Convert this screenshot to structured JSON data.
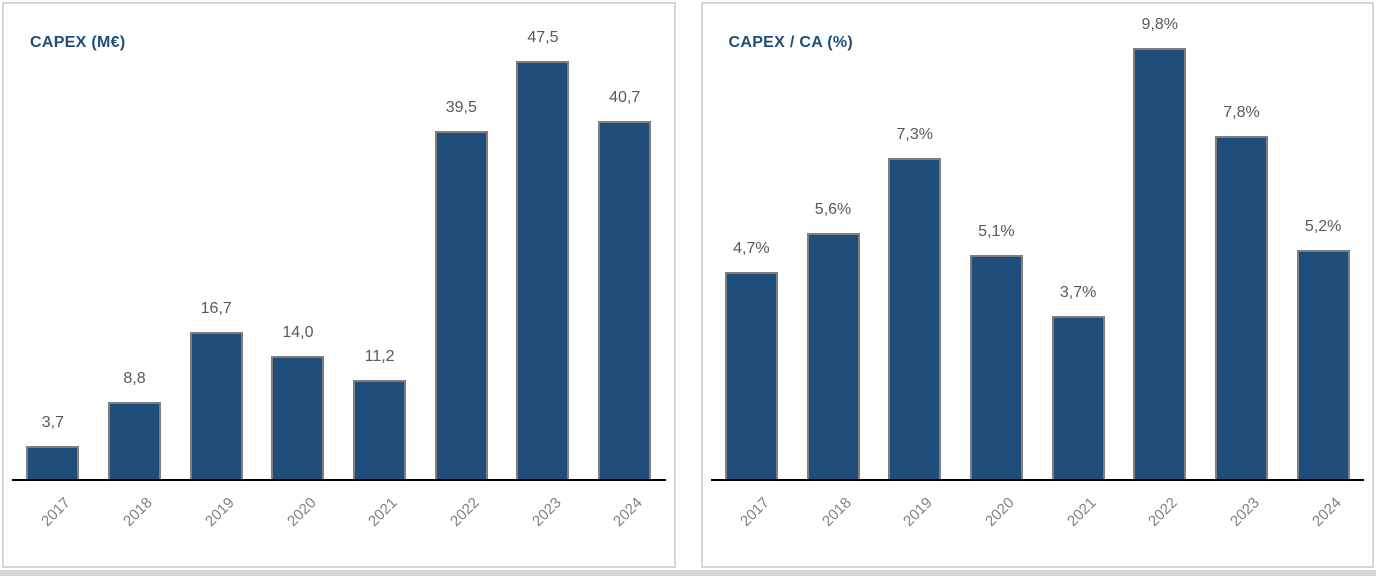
{
  "colors": {
    "bar_fill": "#1f4e7a",
    "bar_border": "#7f7f7f",
    "title": "#1f4e79",
    "data_label": "#595959",
    "axis_label": "#808080",
    "axis_line": "#000000",
    "panel_border": "#d6d6d6",
    "bottom_strip": "#d6d6d6",
    "background": "#ffffff"
  },
  "chart_data": [
    {
      "type": "bar",
      "title": "CAPEX (M€)",
      "categories": [
        "2017",
        "2018",
        "2019",
        "2020",
        "2021",
        "2022",
        "2023",
        "2024"
      ],
      "values": [
        3.7,
        8.8,
        16.7,
        14.0,
        11.2,
        39.5,
        47.5,
        40.7
      ],
      "value_labels": [
        "3,7",
        "8,8",
        "16,7",
        "14,0",
        "11,2",
        "39,5",
        "47,5",
        "40,7"
      ],
      "xlabel": "",
      "ylabel": "",
      "ylim": [
        0,
        50
      ],
      "grid": false,
      "legend": false,
      "data_label_position": "above-bar",
      "x_tick_rotation_deg": 45
    },
    {
      "type": "bar",
      "title": "CAPEX / CA (%)",
      "categories": [
        "2017",
        "2018",
        "2019",
        "2020",
        "2021",
        "2022",
        "2023",
        "2024"
      ],
      "values": [
        4.7,
        5.6,
        7.3,
        5.1,
        3.7,
        9.8,
        7.8,
        5.2
      ],
      "value_labels": [
        "4,7%",
        "5,6%",
        "7,3%",
        "5,1%",
        "3,7%",
        "9,8%",
        "7,8%",
        "5,2%"
      ],
      "xlabel": "",
      "ylabel": "",
      "ylim": [
        0,
        10
      ],
      "grid": false,
      "legend": false,
      "data_label_position": "above-bar",
      "x_tick_rotation_deg": 45
    }
  ]
}
